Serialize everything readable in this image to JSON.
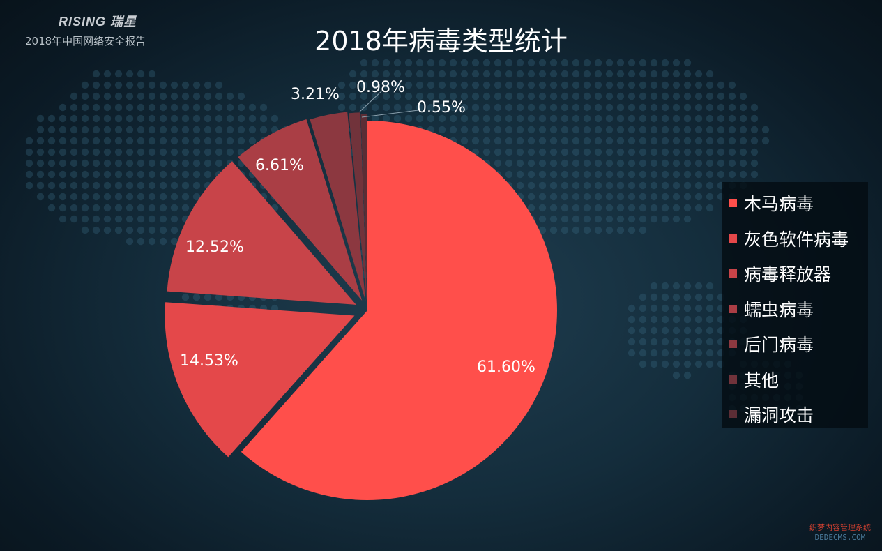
{
  "brand": {
    "logo_text": "RISING 瑞星",
    "subtitle": "2018年中国网络安全报告"
  },
  "watermark": {
    "line1": "织梦内容管理系统",
    "line2": "DEDECMS.COM"
  },
  "colors": {
    "accent": "#ff4f4b",
    "legend_bg": "#050e14",
    "background": "#142d3c"
  },
  "chart_data": {
    "type": "pie",
    "title": "2018年病毒类型统计",
    "categories": [
      "木马病毒",
      "灰色软件病毒",
      "病毒释放器",
      "蠕虫病毒",
      "后门病毒",
      "其他",
      "漏洞攻击"
    ],
    "values": [
      61.6,
      14.53,
      12.52,
      6.61,
      3.21,
      0.98,
      0.55
    ],
    "data_labels": [
      "61.60%",
      "14.53%",
      "12.52%",
      "6.61%",
      "3.21%",
      "0.98%",
      "0.55%"
    ],
    "colors": [
      "#ff4f4b",
      "#e4484a",
      "#c84449",
      "#aa3e45",
      "#8c3840",
      "#71333b",
      "#5b2d35"
    ],
    "exploded": true,
    "legend_position": "right",
    "start_angle": "12 o'clock, clockwise"
  }
}
